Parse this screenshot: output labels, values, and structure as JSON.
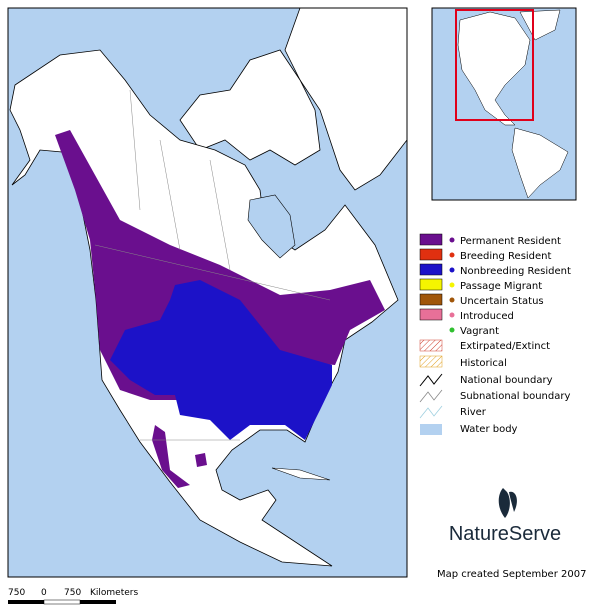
{
  "legend": {
    "items": [
      {
        "label": "Permanent Resident"
      },
      {
        "label": "Breeding Resident"
      },
      {
        "label": "Nonbreeding Resident"
      },
      {
        "label": "Passage Migrant"
      },
      {
        "label": "Uncertain Status"
      },
      {
        "label": "Introduced"
      },
      {
        "label": "Vagrant"
      },
      {
        "label": "Extirpated/Extinct"
      },
      {
        "label": "Historical"
      },
      {
        "label": "National boundary"
      },
      {
        "label": "Subnational boundary"
      },
      {
        "label": "River"
      },
      {
        "label": "Water body"
      }
    ]
  },
  "logo": {
    "text": "NatureServe"
  },
  "footer": {
    "text": "Map created September 2007"
  },
  "scale_bar": {
    "labels": [
      "750",
      "0",
      "750"
    ],
    "unit": "Kilometers"
  }
}
